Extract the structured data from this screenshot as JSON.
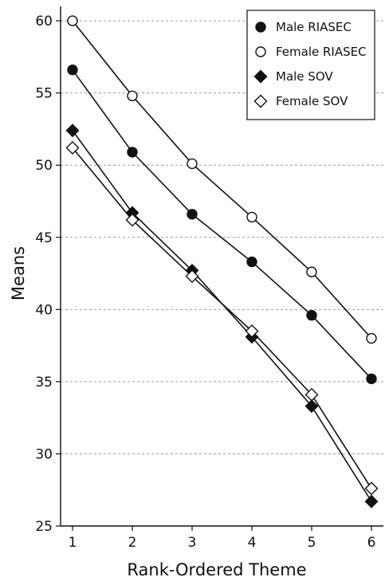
{
  "chart_data": {
    "type": "line",
    "title": "",
    "xlabel": "Rank-Ordered Theme",
    "ylabel": "Means",
    "x": [
      1,
      2,
      3,
      4,
      5,
      6
    ],
    "xlim": [
      0.8,
      6.2
    ],
    "ylim": [
      25,
      61
    ],
    "yticks": [
      25,
      30,
      35,
      40,
      45,
      50,
      55,
      60
    ],
    "grid": "horizontal dashed",
    "legend_position": "top-right",
    "series": [
      {
        "name": "Male RIASEC",
        "marker": "filled-circle",
        "values": [
          56.6,
          50.9,
          46.6,
          43.3,
          39.6,
          35.2
        ]
      },
      {
        "name": "Female RIASEC",
        "marker": "open-circle",
        "values": [
          60.0,
          54.8,
          50.1,
          46.4,
          42.6,
          38.0
        ]
      },
      {
        "name": "Male SOV",
        "marker": "filled-diamond",
        "values": [
          52.4,
          46.7,
          42.7,
          38.1,
          33.3,
          26.7
        ]
      },
      {
        "name": "Female SOV",
        "marker": "open-diamond",
        "values": [
          51.2,
          46.2,
          42.3,
          38.5,
          34.1,
          27.6
        ]
      }
    ]
  }
}
